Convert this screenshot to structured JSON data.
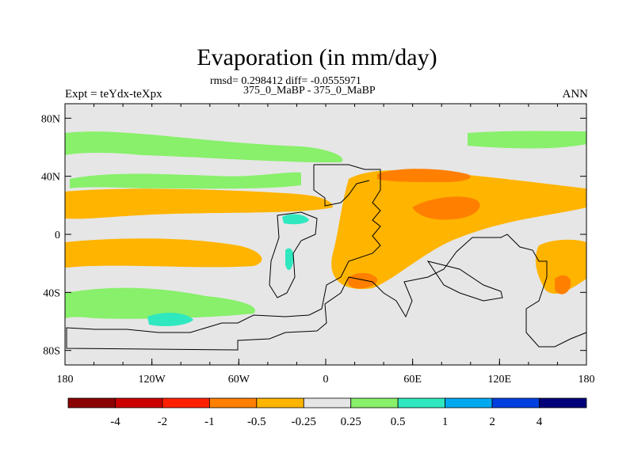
{
  "chart_data": {
    "type": "heatmap",
    "title": "Evaporation (in mm/day)",
    "stats": "rmsd= 0.298412 diff= -0.0555971",
    "subtitle": "375_0_MaBP - 375_0_MaBP",
    "left_label": "Expt = teYdx-teXpx",
    "right_label": "ANN",
    "x_range": [
      -180,
      180
    ],
    "y_range": [
      -90,
      90
    ],
    "x_ticks": [
      {
        "value": -180,
        "label": "180"
      },
      {
        "value": -120,
        "label": "120W"
      },
      {
        "value": -60,
        "label": "60W"
      },
      {
        "value": 0,
        "label": "0"
      },
      {
        "value": 60,
        "label": "60E"
      },
      {
        "value": 120,
        "label": "120E"
      },
      {
        "value": 180,
        "label": "180"
      }
    ],
    "y_ticks": [
      {
        "value": 80,
        "label": "80N"
      },
      {
        "value": 40,
        "label": "40N"
      },
      {
        "value": 0,
        "label": "0"
      },
      {
        "value": -40,
        "label": "40S"
      },
      {
        "value": -80,
        "label": "80S"
      }
    ],
    "colorbar": {
      "levels": [
        "-4",
        "-2",
        "-1",
        "-0.5",
        "-0.25",
        "0.25",
        "0.5",
        "1",
        "2",
        "4"
      ],
      "colors": [
        "#8b0000",
        "#cc0000",
        "#ff2000",
        "#ff7f00",
        "#ffb400",
        "#e6e6e6",
        "#88f06a",
        "#30e8c0",
        "#00a8f0",
        "#0040e0",
        "#00007a"
      ]
    },
    "regions": [
      {
        "name": "nh-subtropics-green",
        "level": "0.25 to 0.5",
        "color": "#88f06a",
        "lon": [
          -180,
          -20
        ],
        "lat": [
          50,
          62
        ]
      },
      {
        "name": "arctic-green-band",
        "level": "0.25 to 0.5",
        "color": "#88f06a",
        "lon": [
          80,
          180
        ],
        "lat": [
          62,
          72
        ]
      },
      {
        "name": "n-pacific-orange-band",
        "level": "-0.5 to -0.25",
        "color": "#ffb400",
        "lon": [
          -180,
          -10
        ],
        "lat": [
          12,
          30
        ]
      },
      {
        "name": "s-pacific-orange-band",
        "level": "-0.5 to -0.25",
        "color": "#ffb400",
        "lon": [
          -180,
          -50
        ],
        "lat": [
          -28,
          -12
        ]
      },
      {
        "name": "s-ocean-green-band",
        "level": "0.25 to 0.5",
        "color": "#88f06a",
        "lon": [
          -180,
          0
        ],
        "lat": [
          -64,
          -40
        ]
      },
      {
        "name": "asia-orange-region",
        "level": "-0.5 to -0.25",
        "color": "#ffb400",
        "lon": [
          0,
          180
        ],
        "lat": [
          -40,
          38
        ]
      },
      {
        "name": "n-asia-red-patch",
        "level": "-1 to -0.5",
        "color": "#ff7f00",
        "lon": [
          40,
          100
        ],
        "lat": [
          34,
          45
        ]
      }
    ]
  }
}
